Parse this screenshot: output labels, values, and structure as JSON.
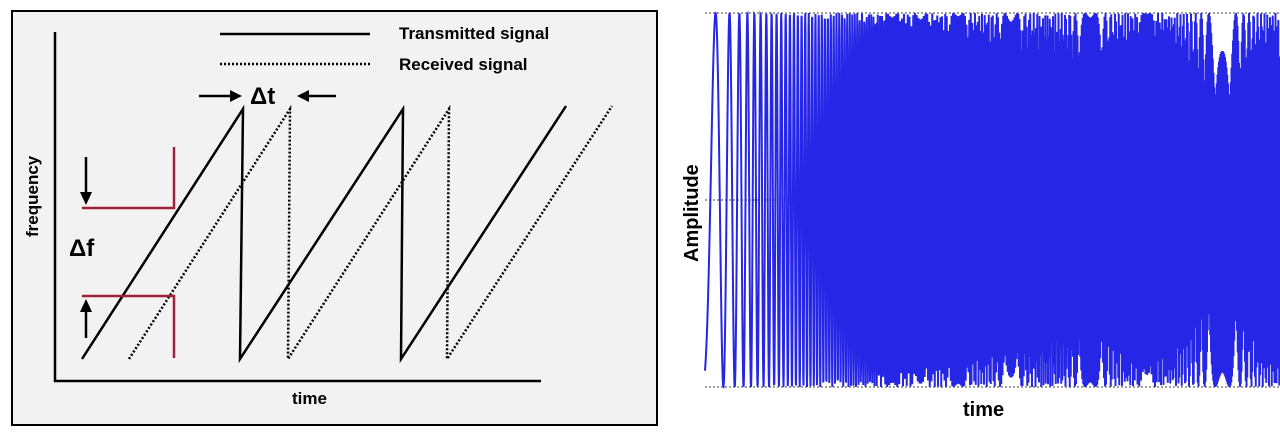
{
  "left_panel": {
    "legend": {
      "transmitted_label": "Transmitted signal",
      "received_label": "Received signal"
    },
    "delta_t_label": "Δt",
    "delta_f_label": "Δf",
    "x_axis_label": "time",
    "y_axis_label": "frequency",
    "colors": {
      "background": "#f2f2f2",
      "frame": "#000000",
      "marker": "#a0203a"
    }
  },
  "right_panel": {
    "x_axis_label": "time",
    "y_axis_label": "Amplitude",
    "colors": {
      "wave": "#2626e6",
      "gridline": "#808080"
    }
  }
}
